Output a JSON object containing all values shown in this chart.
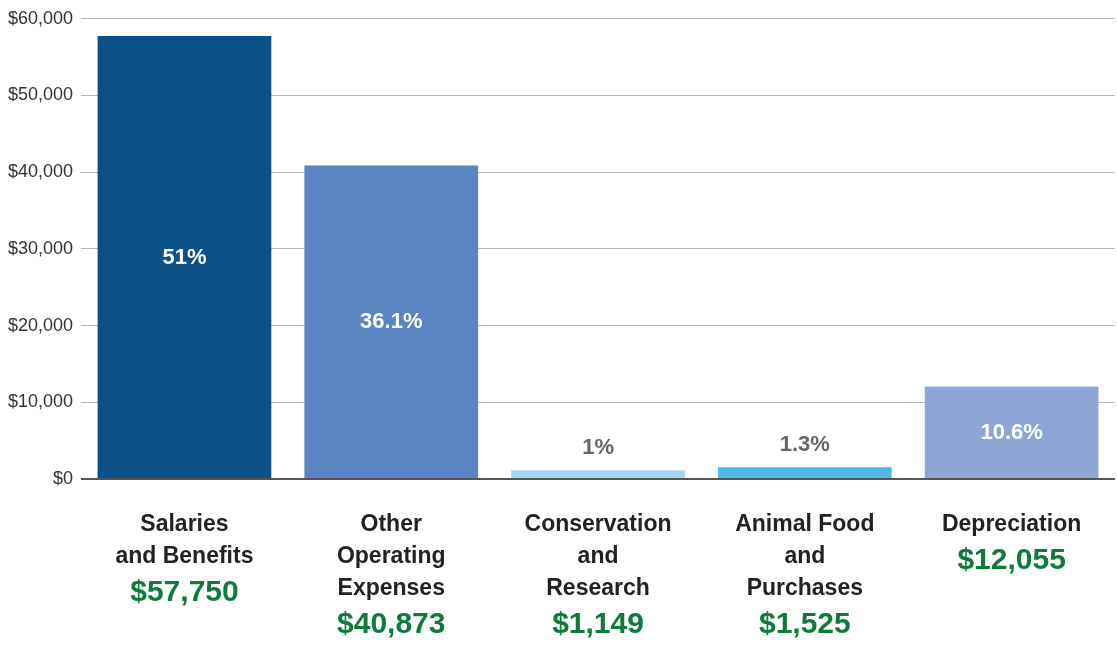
{
  "chart_data": {
    "type": "bar",
    "categories": [
      "Salaries\nand Benefits\n$57,750",
      "Other\nOperating\nExpenses\n$40,873",
      "Conservation\nand\nResearch\n$1,149",
      "Animal Food\nand\nPurchases\n$1,525",
      "Depreciation\n$12,055"
    ],
    "values": [
      57750,
      40873,
      1149,
      1525,
      12055
    ],
    "colors": [
      "#0b5189",
      "#5b84c3",
      "#a3d6f1",
      "#4cb9e7",
      "#8ea6d6"
    ],
    "annotations": [
      "51%",
      "36.1%",
      "1%",
      "1.3%",
      "10.6%"
    ],
    "ylim": [
      0,
      60000
    ],
    "yticks": [
      {
        "value": 0,
        "label": "$0"
      },
      {
        "value": 10000,
        "label": "$10,000"
      },
      {
        "value": 20000,
        "label": "$20,000"
      },
      {
        "value": 30000,
        "label": "$30,000"
      },
      {
        "value": 40000,
        "label": "$40,000"
      },
      {
        "value": 50000,
        "label": "$50,000"
      },
      {
        "value": 60000,
        "label": "$60,000"
      }
    ],
    "grid": "y",
    "legend": false
  }
}
